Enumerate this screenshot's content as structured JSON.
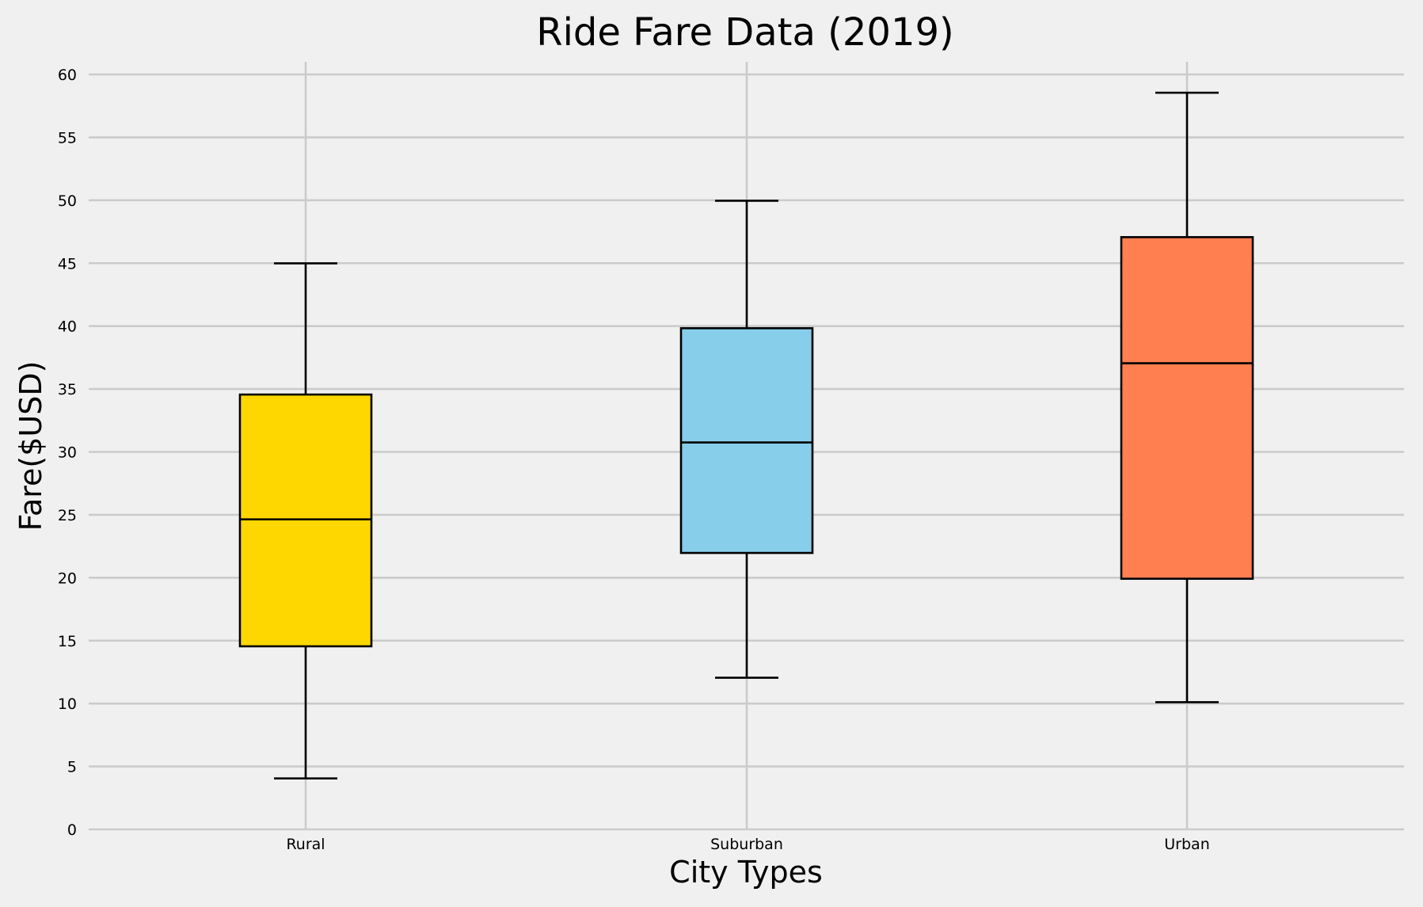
{
  "chart_data": {
    "type": "box",
    "title": "Ride Fare Data (2019)",
    "xlabel": "City Types",
    "ylabel": "Fare($USD)",
    "ylim": [
      0,
      61
    ],
    "yticks": [
      0,
      5,
      10,
      15,
      20,
      25,
      30,
      35,
      40,
      45,
      50,
      55,
      60
    ],
    "grid": true,
    "categories": [
      "Rural",
      "Suburban",
      "Urban"
    ],
    "boxes": [
      {
        "name": "Rural",
        "whislo": 4.05,
        "q1": 14.55,
        "med": 24.64,
        "q3": 34.56,
        "whishi": 44.99,
        "color": "#ffd700"
      },
      {
        "name": "Suburban",
        "whislo": 12.05,
        "q1": 21.97,
        "med": 30.75,
        "q3": 39.83,
        "whishi": 49.96,
        "color": "#87ceeb"
      },
      {
        "name": "Urban",
        "whislo": 10.11,
        "q1": 19.92,
        "med": 37.05,
        "q3": 47.07,
        "whishi": 58.55,
        "color": "#ff7f50"
      }
    ]
  }
}
